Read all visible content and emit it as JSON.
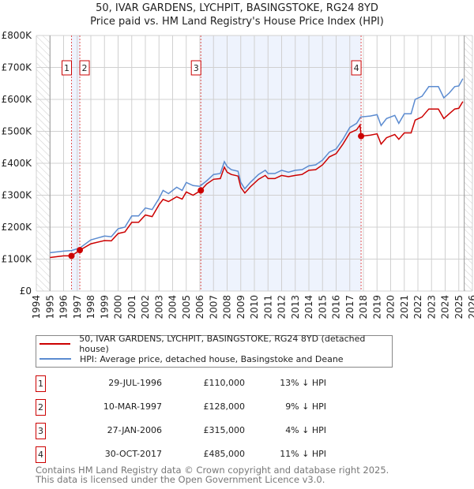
{
  "title": "50, IVAR GARDENS, LYCHPIT, BASINGSTOKE, RG24 8YD",
  "subtitle": "Price paid vs. HM Land Registry's House Price Index (HPI)",
  "colors": {
    "property": "#cc0000",
    "hpi": "#5b8bd0",
    "band": "#eef3fd"
  },
  "chart_data": {
    "type": "line",
    "xlim": [
      1994,
      2026
    ],
    "ylim": [
      0,
      800000
    ],
    "x_ticks": [
      "1994",
      "1995",
      "1996",
      "1997",
      "1998",
      "1999",
      "2000",
      "2001",
      "2002",
      "2003",
      "2004",
      "2005",
      "2006",
      "2007",
      "2008",
      "2009",
      "2010",
      "2011",
      "2012",
      "2013",
      "2014",
      "2015",
      "2016",
      "2017",
      "2018",
      "2019",
      "2020",
      "2021",
      "2022",
      "2023",
      "2024",
      "2025",
      "2026"
    ],
    "y_ticks": [
      {
        "v": 0,
        "label": "£0"
      },
      {
        "v": 100000,
        "label": "£100K"
      },
      {
        "v": 200000,
        "label": "£200K"
      },
      {
        "v": 300000,
        "label": "£300K"
      },
      {
        "v": 400000,
        "label": "£400K"
      },
      {
        "v": 500000,
        "label": "£500K"
      },
      {
        "v": 600000,
        "label": "£600K"
      },
      {
        "v": 700000,
        "label": "£700K"
      },
      {
        "v": 800000,
        "label": "£800K"
      }
    ],
    "grid": true,
    "hatched_ranges": [
      [
        1994,
        1995
      ],
      [
        2025.4,
        2026
      ]
    ],
    "shaded_ranges": [
      [
        1996.58,
        1997.19
      ],
      [
        2006.07,
        2017.83
      ]
    ],
    "series": [
      {
        "name": "50, IVAR GARDENS, LYCHPIT, BASINGSTOKE, RG24 8YD (detached house)",
        "color": "#cc0000",
        "points": [
          [
            1995,
            105
          ],
          [
            1996,
            110
          ],
          [
            1996.58,
            110
          ],
          [
            1997.19,
            128
          ],
          [
            1998,
            148
          ],
          [
            1999,
            158
          ],
          [
            1999.5,
            157
          ],
          [
            2000,
            180
          ],
          [
            2000.5,
            185
          ],
          [
            2001,
            215
          ],
          [
            2001.5,
            215
          ],
          [
            2002,
            238
          ],
          [
            2002.5,
            233
          ],
          [
            2003,
            270
          ],
          [
            2003.3,
            287
          ],
          [
            2003.7,
            280
          ],
          [
            2004.3,
            295
          ],
          [
            2004.7,
            288
          ],
          [
            2005,
            310
          ],
          [
            2005.5,
            300
          ],
          [
            2006.07,
            315
          ],
          [
            2006.5,
            335
          ],
          [
            2007,
            350
          ],
          [
            2007.5,
            352
          ],
          [
            2007.8,
            388
          ],
          [
            2008,
            372
          ],
          [
            2008.3,
            365
          ],
          [
            2008.8,
            360
          ],
          [
            2009,
            325
          ],
          [
            2009.3,
            307
          ],
          [
            2009.7,
            326
          ],
          [
            2010.3,
            350
          ],
          [
            2010.8,
            362
          ],
          [
            2011,
            352
          ],
          [
            2011.5,
            352
          ],
          [
            2012,
            362
          ],
          [
            2012.5,
            358
          ],
          [
            2013,
            362
          ],
          [
            2013.5,
            365
          ],
          [
            2014,
            378
          ],
          [
            2014.5,
            380
          ],
          [
            2015,
            395
          ],
          [
            2015.5,
            420
          ],
          [
            2016,
            430
          ],
          [
            2016.5,
            460
          ],
          [
            2017,
            495
          ],
          [
            2017.5,
            505
          ],
          [
            2017.75,
            520
          ],
          [
            2017.83,
            485
          ],
          [
            2018.5,
            488
          ],
          [
            2019,
            492
          ],
          [
            2019.3,
            460
          ],
          [
            2019.7,
            480
          ],
          [
            2020.3,
            490
          ],
          [
            2020.6,
            475
          ],
          [
            2021,
            495
          ],
          [
            2021.5,
            495
          ],
          [
            2021.8,
            535
          ],
          [
            2022.3,
            545
          ],
          [
            2022.8,
            570
          ],
          [
            2023.5,
            570
          ],
          [
            2023.9,
            540
          ],
          [
            2024.3,
            555
          ],
          [
            2024.7,
            570
          ],
          [
            2025,
            572
          ],
          [
            2025.3,
            593
          ]
        ]
      },
      {
        "name": "HPI: Average price, detached house, Basingstoke and Deane",
        "color": "#5b8bd0",
        "points": [
          [
            1995,
            120
          ],
          [
            1996,
            125
          ],
          [
            1996.6,
            127
          ],
          [
            1997.2,
            135
          ],
          [
            1998,
            160
          ],
          [
            1999,
            172
          ],
          [
            1999.5,
            170
          ],
          [
            2000,
            195
          ],
          [
            2000.5,
            200
          ],
          [
            2001,
            235
          ],
          [
            2001.5,
            235
          ],
          [
            2002,
            260
          ],
          [
            2002.5,
            255
          ],
          [
            2003,
            290
          ],
          [
            2003.3,
            315
          ],
          [
            2003.7,
            305
          ],
          [
            2004.3,
            325
          ],
          [
            2004.7,
            315
          ],
          [
            2005,
            340
          ],
          [
            2005.5,
            330
          ],
          [
            2006,
            328
          ],
          [
            2006.5,
            345
          ],
          [
            2007,
            365
          ],
          [
            2007.5,
            368
          ],
          [
            2007.8,
            405
          ],
          [
            2008,
            390
          ],
          [
            2008.3,
            380
          ],
          [
            2008.8,
            375
          ],
          [
            2009,
            340
          ],
          [
            2009.3,
            320
          ],
          [
            2009.7,
            340
          ],
          [
            2010.3,
            365
          ],
          [
            2010.8,
            378
          ],
          [
            2011,
            368
          ],
          [
            2011.5,
            368
          ],
          [
            2012,
            378
          ],
          [
            2012.5,
            372
          ],
          [
            2013,
            378
          ],
          [
            2013.5,
            380
          ],
          [
            2014,
            392
          ],
          [
            2014.5,
            395
          ],
          [
            2015,
            410
          ],
          [
            2015.5,
            435
          ],
          [
            2016,
            445
          ],
          [
            2016.5,
            475
          ],
          [
            2017,
            512
          ],
          [
            2017.5,
            525
          ],
          [
            2017.8,
            545
          ],
          [
            2018.5,
            548
          ],
          [
            2019,
            552
          ],
          [
            2019.3,
            518
          ],
          [
            2019.7,
            540
          ],
          [
            2020.3,
            550
          ],
          [
            2020.6,
            525
          ],
          [
            2021,
            555
          ],
          [
            2021.5,
            555
          ],
          [
            2021.8,
            600
          ],
          [
            2022.3,
            610
          ],
          [
            2022.8,
            640
          ],
          [
            2023.5,
            640
          ],
          [
            2023.9,
            605
          ],
          [
            2024.3,
            620
          ],
          [
            2024.7,
            640
          ],
          [
            2025,
            642
          ],
          [
            2025.3,
            665
          ]
        ]
      }
    ],
    "units_note": "point values in thousands of GBP",
    "sales": [
      {
        "id": "1",
        "x": 1996.58,
        "y": 110
      },
      {
        "id": "2",
        "x": 1997.19,
        "y": 128
      },
      {
        "id": "3",
        "x": 2006.07,
        "y": 315
      },
      {
        "id": "4",
        "x": 2017.83,
        "y": 485
      }
    ]
  },
  "legend": {
    "property": "50, IVAR GARDENS, LYCHPIT, BASINGSTOKE, RG24 8YD (detached house)",
    "hpi": "HPI: Average price, detached house, Basingstoke and Deane"
  },
  "transactions": [
    {
      "id": "1",
      "date": "29-JUL-1996",
      "price": "£110,000",
      "hpi": "13% ↓ HPI"
    },
    {
      "id": "2",
      "date": "10-MAR-1997",
      "price": "£128,000",
      "hpi": "9% ↓ HPI"
    },
    {
      "id": "3",
      "date": "27-JAN-2006",
      "price": "£315,000",
      "hpi": "4% ↓ HPI"
    },
    {
      "id": "4",
      "date": "30-OCT-2017",
      "price": "£485,000",
      "hpi": "11% ↓ HPI"
    }
  ],
  "footer": {
    "line1": "Contains HM Land Registry data © Crown copyright and database right 2025.",
    "line2": "This data is licensed under the Open Government Licence v3.0."
  }
}
